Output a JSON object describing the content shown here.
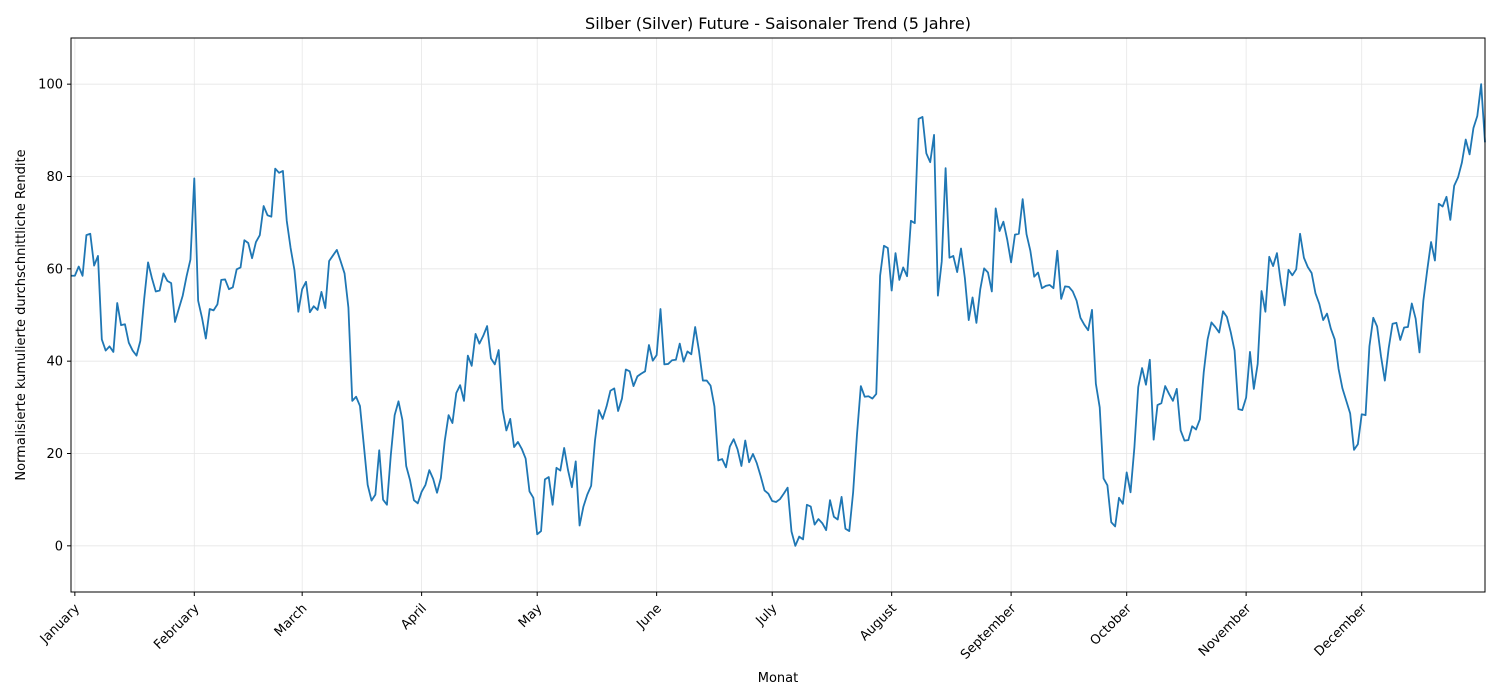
{
  "chart_data": {
    "type": "line",
    "title": "Silber (Silver) Future - Saisonaler Trend (5 Jahre)",
    "xlabel": "Monat",
    "ylabel": "Normalisierte kumulierte durchschnittliche Rendite",
    "ylim": [
      -10,
      110
    ],
    "xlim": [
      0,
      367
    ],
    "yticks": [
      0,
      20,
      40,
      60,
      80,
      100
    ],
    "grid": true,
    "line_color": "#1f77b4",
    "month_ticks": [
      {
        "label": "January",
        "day": 1
      },
      {
        "label": "February",
        "day": 32
      },
      {
        "label": "March",
        "day": 60
      },
      {
        "label": "April",
        "day": 91
      },
      {
        "label": "May",
        "day": 121
      },
      {
        "label": "June",
        "day": 152
      },
      {
        "label": "July",
        "day": 182
      },
      {
        "label": "August",
        "day": 213
      },
      {
        "label": "September",
        "day": 244
      },
      {
        "label": "October",
        "day": 274
      },
      {
        "label": "November",
        "day": 305
      },
      {
        "label": "December",
        "day": 335
      }
    ],
    "series": [
      {
        "x": [
          0,
          1,
          2,
          3,
          4,
          5,
          6,
          7,
          8,
          9,
          10,
          11,
          12,
          13,
          14,
          15,
          16,
          17,
          18,
          19,
          20,
          21,
          22,
          23,
          24,
          25,
          26,
          27,
          28,
          29,
          30,
          31,
          32,
          33,
          34,
          35,
          36,
          37,
          38,
          39,
          40,
          41,
          42,
          43,
          44,
          45,
          46,
          47,
          48,
          49,
          50,
          51,
          52,
          53,
          54,
          55,
          56,
          57,
          58,
          59,
          60,
          61,
          62,
          63,
          64,
          65,
          66,
          67,
          68,
          69,
          70,
          71,
          72,
          73,
          74,
          75,
          76,
          77,
          78,
          79,
          80,
          81,
          82,
          83,
          84,
          85,
          86,
          87,
          88,
          89,
          90,
          91,
          92,
          93,
          94,
          95,
          96,
          97,
          98,
          99,
          100,
          101,
          102,
          103,
          104,
          105,
          106,
          107,
          108,
          109,
          110,
          111,
          112,
          113,
          114,
          115,
          116,
          117,
          118,
          119,
          120,
          121,
          122,
          123,
          124,
          125,
          126,
          127,
          128,
          129,
          130,
          131,
          132,
          133,
          134,
          135,
          136,
          137,
          138,
          139,
          140,
          141,
          142,
          143,
          144,
          145,
          146,
          147,
          148,
          149,
          150,
          151,
          152,
          153,
          154,
          155,
          156,
          157,
          158,
          159,
          160,
          161,
          162,
          163,
          164,
          165,
          166,
          167,
          168,
          169,
          170,
          171,
          172,
          173,
          174,
          175,
          176,
          177,
          178,
          179,
          180,
          181,
          182,
          183,
          184,
          185,
          186,
          187,
          188,
          189,
          190,
          191,
          192,
          193,
          194,
          195,
          196,
          197,
          198,
          199,
          200,
          201,
          202,
          203,
          204,
          205,
          206,
          207,
          208,
          209,
          210,
          211,
          212,
          213,
          214,
          215,
          216,
          217,
          218,
          219,
          220,
          221,
          222,
          223,
          224,
          225,
          226,
          227,
          228,
          229,
          230,
          231,
          232,
          233,
          234,
          235,
          236,
          237,
          238,
          239,
          240,
          241,
          242,
          243,
          244,
          245,
          246,
          247,
          248,
          249,
          250,
          251,
          252,
          253,
          254,
          255,
          256,
          257,
          258,
          259,
          260,
          261,
          262,
          263,
          264,
          265,
          266,
          267,
          268,
          269,
          270,
          271,
          272,
          273,
          274,
          275,
          276,
          277,
          278,
          279,
          280,
          281,
          282,
          283,
          284,
          285,
          286,
          287,
          288,
          289,
          290,
          291,
          292,
          293,
          294,
          295,
          296,
          297,
          298,
          299,
          300,
          301,
          302,
          303,
          304,
          305,
          306,
          307,
          308,
          309,
          310,
          311,
          312,
          313,
          314,
          315,
          316,
          317,
          318,
          319,
          320,
          321,
          322,
          323,
          324,
          325,
          326,
          327,
          328,
          329,
          330,
          331,
          332,
          333,
          334,
          335,
          336,
          337,
          338,
          339,
          340,
          341,
          342,
          343,
          344,
          345,
          346,
          347,
          348,
          349,
          350,
          351,
          352,
          353,
          354,
          355,
          356,
          357,
          358,
          359,
          360,
          361,
          362,
          363,
          364,
          365,
          366,
          367
        ],
        "values": [
          58.5,
          58.5,
          60.5,
          58.5,
          67.3,
          67.6,
          60.7,
          62.8,
          44.7,
          42.3,
          43.2,
          42,
          52.6,
          47.8,
          48,
          44,
          42.3,
          41.2,
          44.4,
          53.5,
          61.4,
          58,
          55.1,
          55.3,
          59,
          57.4,
          56.9,
          48.5,
          51.4,
          54.2,
          58.4,
          62,
          79.6,
          53.1,
          49.4,
          44.9,
          51.3,
          51,
          52.3,
          57.6,
          57.7,
          55.6,
          56,
          59.9,
          60.3,
          66.2,
          65.6,
          62.3,
          65.8,
          67.3,
          73.6,
          71.6,
          71.3,
          81.7,
          80.8,
          81.2,
          70.4,
          64.5,
          59.7,
          50.7,
          55.6,
          57.2,
          50.6,
          51.9,
          51.1,
          55,
          51.5,
          61.7,
          62.9,
          64.1,
          61.6,
          59,
          51.6,
          31.4,
          32.3,
          30.3,
          21.8,
          13.2,
          9.8,
          11.1,
          20.7,
          10,
          8.9,
          19.6,
          28.3,
          31.3,
          27.3,
          17.3,
          14.2,
          9.9,
          9.2,
          11.7,
          13.2,
          16.4,
          14.5,
          11.5,
          14.7,
          22.7,
          28.3,
          26.6,
          33.1,
          34.8,
          31.4,
          41.2,
          39,
          45.9,
          43.8,
          45.5,
          47.6,
          40.6,
          39.3,
          42.4,
          29.6,
          25,
          27.5,
          21.4,
          22.5,
          21,
          18.9,
          11.8,
          10.4,
          2.5,
          3.2,
          14.4,
          14.9,
          8.9,
          16.9,
          16.3,
          21.2,
          16.4,
          12.7,
          18.3,
          4.4,
          8.5,
          11.1,
          13,
          22.8,
          29.4,
          27.5,
          30.2,
          33.6,
          34.1,
          29.2,
          31.9,
          38.2,
          37.8,
          34.6,
          36.7,
          37.3,
          37.8,
          43.5,
          40.1,
          41.3,
          51.3,
          39.3,
          39.4,
          40.2,
          40.3,
          43.8,
          39.9,
          42.1,
          41.5,
          47.4,
          42.2,
          35.8,
          35.8,
          34.7,
          30.2,
          18.5,
          18.8,
          17,
          21.5,
          23.1,
          20.9,
          17.3,
          22.8,
          18.1,
          19.9,
          17.9,
          15.1,
          12,
          11.3,
          9.7,
          9.5,
          10.1,
          11.3,
          12.6,
          3.1,
          0,
          2,
          1.4,
          8.9,
          8.5,
          4.6,
          5.8,
          4.9,
          3.4,
          9.9,
          6.3,
          5.7,
          10.6,
          3.7,
          3.2,
          11.6,
          24.1,
          34.6,
          32.3,
          32.4,
          31.9,
          32.9,
          58.5,
          65,
          64.5,
          55.3,
          63.4,
          57.6,
          60.3,
          58.4,
          70.4,
          69.9,
          92.5,
          92.9,
          85,
          83.1,
          89,
          54.2,
          61.6,
          81.8,
          62.4,
          62.8,
          59.3,
          64.4,
          58,
          48.9,
          53.8,
          48.3,
          55.6,
          60.1,
          59.2,
          55.1,
          73.1,
          68.2,
          70.2,
          66.3,
          61.4,
          67.4,
          67.6,
          75.1,
          67.5,
          63.9,
          58.3,
          59.2,
          55.8,
          56.3,
          56.5,
          55.8,
          63.9,
          53.5,
          56.2,
          56.1,
          55.1,
          53.1,
          49.4,
          47.9,
          46.7,
          51.1,
          35.1,
          30,
          14.6,
          13.1,
          5.1,
          4.2,
          10.4,
          9.1,
          15.9,
          11.6,
          21.3,
          34.4,
          38.5,
          34.9,
          40.3,
          23,
          30.5,
          30.9,
          34.6,
          32.9,
          31.4,
          34,
          25,
          22.8,
          22.9,
          25.9,
          25.2,
          27.4,
          37.6,
          44.7,
          48.4,
          47.4,
          46.2,
          50.8,
          49.6,
          46.3,
          42.3,
          29.6,
          29.4,
          32.1,
          42,
          34,
          39.4,
          55.2,
          50.7,
          62.6,
          60.6,
          63.4,
          57.1,
          52.1,
          59.8,
          58.6,
          59.9,
          67.6,
          62.4,
          60.4,
          59.1,
          54.7,
          52.4,
          48.9,
          50.3,
          47,
          44.7,
          38.3,
          34.1,
          31.4,
          28.7,
          20.8,
          22,
          28.5,
          28.3,
          43.2,
          49.4,
          47.5,
          41.1,
          35.8,
          42.8,
          48.1,
          48.3,
          44.6,
          47.3,
          47.4,
          52.5,
          49.2,
          41.9,
          53.1,
          59.7,
          65.8,
          61.8,
          74.1,
          73.5,
          75.6,
          70.6,
          78,
          79.8,
          83,
          88,
          84.8,
          90.5,
          93.1,
          100,
          87.4
        ]
      }
    ]
  }
}
